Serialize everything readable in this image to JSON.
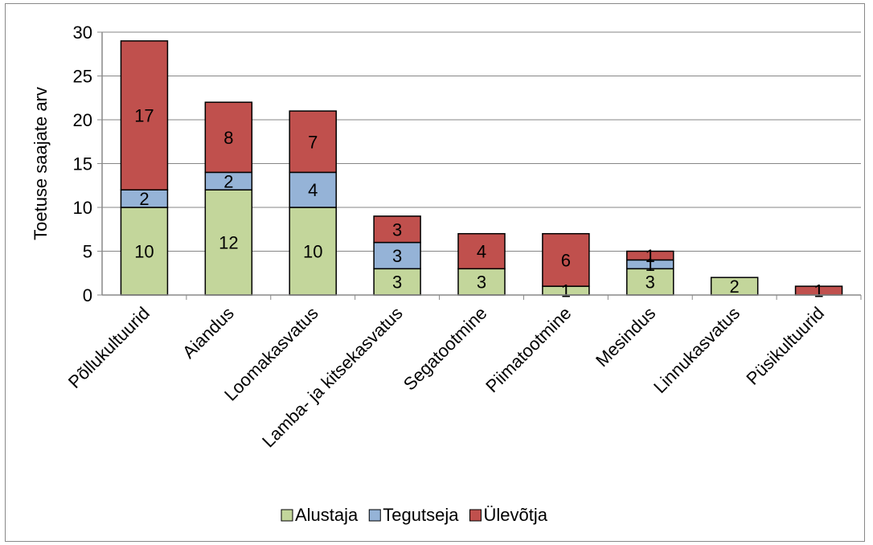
{
  "chart_data": {
    "type": "bar",
    "stacked": true,
    "ylabel": "Toetuse saajate arv",
    "xlabel": "",
    "ylim": [
      0,
      30
    ],
    "yticks": [
      0,
      5,
      10,
      15,
      20,
      25,
      30
    ],
    "grid": true,
    "legend_position": "bottom",
    "categories": [
      "Põllukultuurid",
      "Aiandus",
      "Loomakasvatus",
      "Lamba- ja kitsekasvatus",
      "Segatootmine",
      "Piimatootmine",
      "Mesindus",
      "Linnukasvatus",
      "Püsikultuurid"
    ],
    "series": [
      {
        "name": "Alustaja",
        "color": "#c3d69b",
        "values": [
          10,
          12,
          10,
          3,
          3,
          1,
          3,
          2,
          0
        ]
      },
      {
        "name": "Tegutseja",
        "color": "#95b3d7",
        "values": [
          2,
          2,
          4,
          3,
          0,
          0,
          1,
          0,
          0
        ]
      },
      {
        "name": "Ülevõtja",
        "color": "#c0504d",
        "values": [
          17,
          8,
          7,
          3,
          4,
          6,
          1,
          0,
          1
        ]
      }
    ]
  }
}
